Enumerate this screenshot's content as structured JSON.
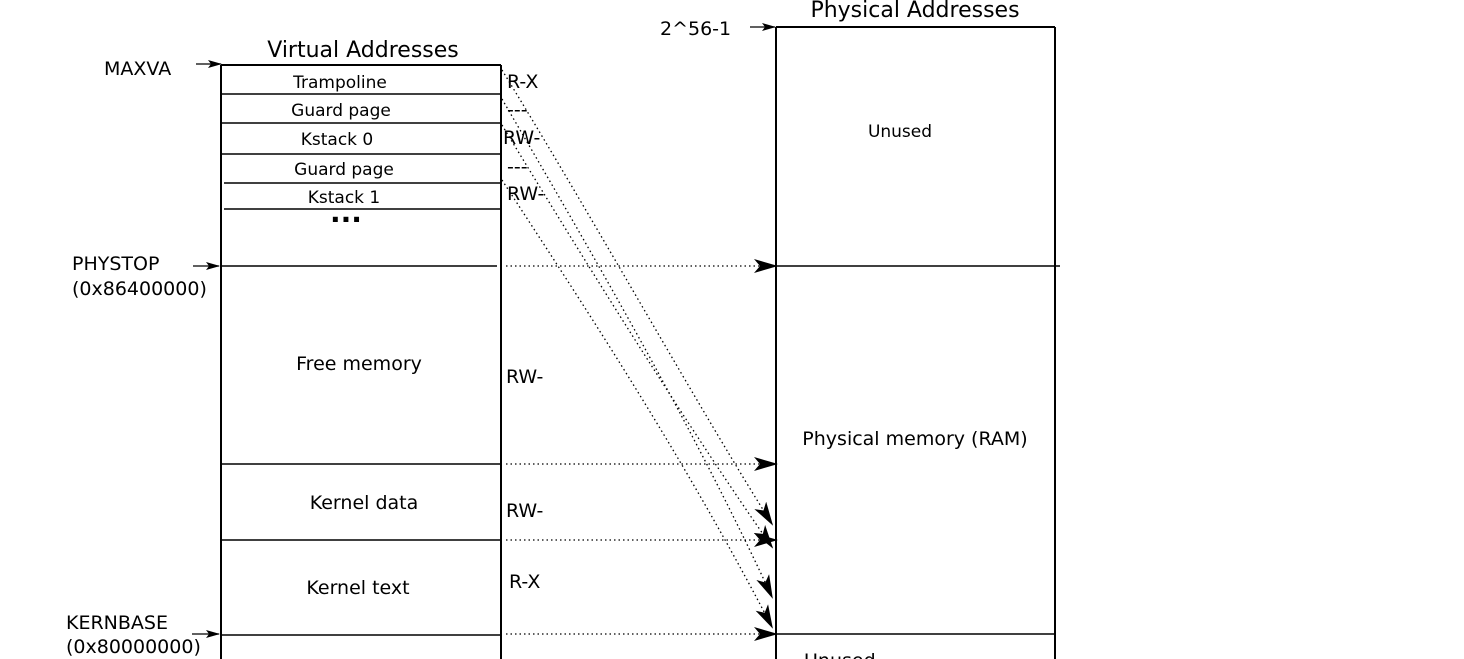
{
  "virtual": {
    "title": "Virtual Addresses",
    "regions": [
      {
        "id": "trampoline",
        "label": "Trampoline",
        "perm": "R-X"
      },
      {
        "id": "guard0",
        "label": "Guard page",
        "perm": "---"
      },
      {
        "id": "kstack0",
        "label": "Kstack 0",
        "perm": "RW-"
      },
      {
        "id": "guard1",
        "label": "Guard page",
        "perm": "---"
      },
      {
        "id": "kstack1",
        "label": "Kstack 1",
        "perm": "RW-"
      },
      {
        "id": "ellipsis",
        "label": "...",
        "perm": ""
      },
      {
        "id": "free",
        "label": "Free memory",
        "perm": "RW-"
      },
      {
        "id": "kdata",
        "label": "Kernel data",
        "perm": "RW-"
      },
      {
        "id": "ktext",
        "label": "Kernel text",
        "perm": "R-X"
      }
    ],
    "markers": {
      "maxva": "MAXVA",
      "phystop": "PHYSTOP",
      "phystop_addr": "(0x86400000)",
      "kernbase": "KERNBASE",
      "kernbase_addr": "(0x80000000)"
    }
  },
  "physical": {
    "title": "Physical Addresses",
    "top_marker": "2^56-1",
    "regions": [
      {
        "id": "unused_top",
        "label": "Unused"
      },
      {
        "id": "ram",
        "label": "Physical memory (RAM)"
      },
      {
        "id": "unused_bottom",
        "label": "Unused"
      }
    ]
  }
}
